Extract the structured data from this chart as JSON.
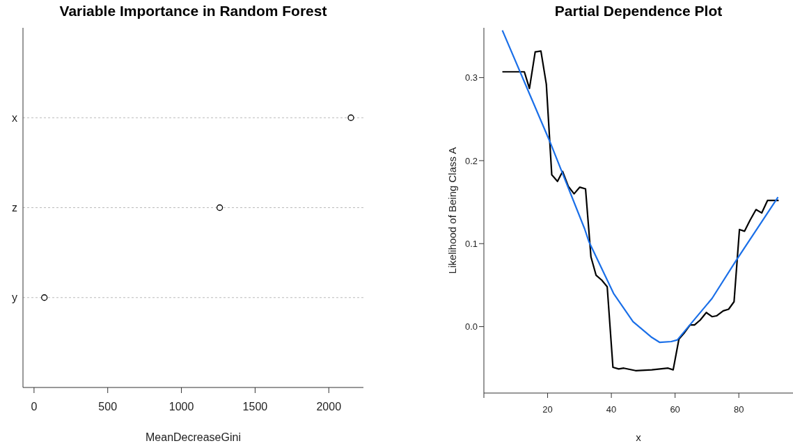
{
  "chart_data": [
    {
      "type": "scatter",
      "title": "Variable Importance in Random Forest",
      "xlabel": "MeanDecreaseGini",
      "orientation": "horizontal",
      "categories": [
        "x",
        "z",
        "y"
      ],
      "values": [
        2150,
        1260,
        70
      ],
      "color": "#000000",
      "xlim": [
        -75,
        2235
      ],
      "xticks": [
        0,
        500,
        1000,
        1500,
        2000
      ],
      "grid": "y",
      "marker": "circle"
    },
    {
      "type": "line",
      "title": "Partial Dependence Plot",
      "xlabel": "x",
      "ylabel": "Likelihood of Being Class A",
      "xlim": [
        0,
        97
      ],
      "xticks": [
        {
          "value": 0,
          "label": null
        },
        20,
        40,
        60,
        80
      ],
      "ylim": [
        -0.08,
        0.36
      ],
      "yticks": [
        {
          "value": 0,
          "label": "0.0"
        },
        0.1,
        0.2,
        0.3
      ],
      "series": [
        {
          "color": "#000000",
          "x": [
            5.8,
            12.7,
            14.3,
            16.1,
            17.9,
            19.6,
            21.3,
            23.1,
            24.7,
            26.5,
            28.3,
            30.1,
            31.9,
            33.6,
            35.2,
            37.0,
            38.7,
            40.5,
            42.3,
            43.9,
            47.6,
            52.7,
            57.8,
            59.4,
            61.2,
            62.8,
            64.7,
            66.1,
            67.9,
            69.8,
            71.6,
            73.0,
            75.1,
            76.8,
            78.5,
            80.2,
            81.8,
            83.5,
            85.4,
            87.2,
            89.0,
            92.5
          ],
          "values": [
            0.307,
            0.307,
            0.287,
            0.331,
            0.332,
            0.292,
            0.183,
            0.175,
            0.187,
            0.169,
            0.16,
            0.168,
            0.166,
            0.084,
            0.062,
            0.056,
            0.048,
            -0.049,
            -0.051,
            -0.05,
            -0.053,
            -0.052,
            -0.05,
            -0.052,
            -0.015,
            -0.008,
            0.002,
            0.002,
            0.008,
            0.017,
            0.012,
            0.013,
            0.019,
            0.021,
            0.03,
            0.117,
            0.115,
            0.128,
            0.141,
            0.137,
            0.152,
            0.152
          ]
        },
        {
          "color": "#1a6fe8",
          "x": [
            5.8,
            20.7,
            31.6,
            33.0,
            40.7,
            46.8,
            52.7,
            55.2,
            58.8,
            60.7,
            71.6,
            79.2,
            92.3
          ],
          "values": [
            0.357,
            0.223,
            0.118,
            0.102,
            0.04,
            0.006,
            -0.013,
            -0.019,
            -0.018,
            -0.016,
            0.034,
            0.08,
            0.156
          ]
        }
      ]
    }
  ]
}
